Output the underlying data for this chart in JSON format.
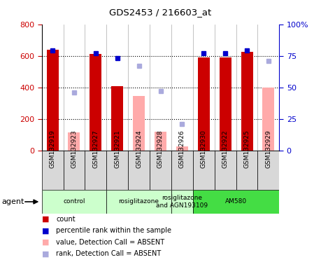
{
  "title": "GDS2453 / 216603_at",
  "samples": [
    "GSM132919",
    "GSM132923",
    "GSM132927",
    "GSM132921",
    "GSM132924",
    "GSM132928",
    "GSM132926",
    "GSM132930",
    "GSM132922",
    "GSM132925",
    "GSM132929"
  ],
  "count_values": [
    640,
    null,
    610,
    410,
    null,
    null,
    null,
    590,
    590,
    625,
    null
  ],
  "count_absent": [
    null,
    115,
    null,
    null,
    345,
    120,
    25,
    null,
    null,
    null,
    400
  ],
  "rank_values": [
    79,
    null,
    77,
    73,
    null,
    null,
    null,
    77,
    77,
    79,
    null
  ],
  "rank_absent": [
    null,
    46,
    null,
    null,
    67,
    47,
    21,
    null,
    null,
    null,
    71
  ],
  "agent_groups": [
    {
      "label": "control",
      "start": 0,
      "end": 3,
      "color": "#ccffcc"
    },
    {
      "label": "rosiglitazone",
      "start": 3,
      "end": 6,
      "color": "#ccffcc"
    },
    {
      "label": "rosiglitazone\nand AGN193109",
      "start": 6,
      "end": 7,
      "color": "#ccffcc"
    },
    {
      "label": "AM580",
      "start": 7,
      "end": 11,
      "color": "#44dd44"
    }
  ],
  "ylim_left": [
    0,
    800
  ],
  "ylim_right": [
    0,
    100
  ],
  "yticks_left": [
    0,
    200,
    400,
    600,
    800
  ],
  "yticks_right": [
    0,
    25,
    50,
    75,
    100
  ],
  "yticklabels_right": [
    "0",
    "25",
    "50",
    "75",
    "100%"
  ],
  "color_count": "#cc0000",
  "color_count_absent": "#ffaaaa",
  "color_rank": "#0000cc",
  "color_rank_absent": "#aaaadd"
}
